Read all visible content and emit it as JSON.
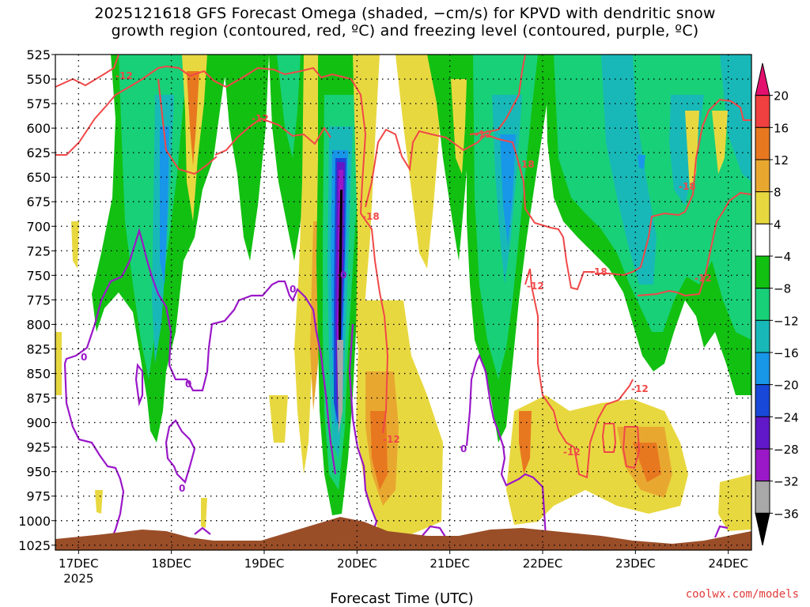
{
  "title": {
    "line1": "2025121618 GFS Forecast Omega (shaded, −cm/s) for KPVD with dendritic snow",
    "line2": "growth region (contoured, red, ºC) and freezing level (contoured, purple, ºC)"
  },
  "credit": "coolwx.com/models",
  "colors": {
    "dendritic_contour": "#f04848",
    "freezing_contour": "#9a18c8",
    "terrain": "#9a4e28",
    "grid": "#000000"
  },
  "chart_data": {
    "type": "heatmap",
    "title": "2025121618 GFS Forecast Omega (shaded, −cm/s) for KPVD with dendritic snow growth region (contoured, red, ºC) and freezing level (contoured, purple, ºC)",
    "xlabel": "Forecast Time (UTC)",
    "ylabel": "",
    "x_ticks": [
      "17DEC",
      "18DEC",
      "19DEC",
      "20DEC",
      "21DEC",
      "22DEC",
      "23DEC",
      "24DEC"
    ],
    "x_year_label": "2025",
    "x_range": [
      "2025-12-16 18UTC",
      "2025-12-24 06UTC"
    ],
    "y_ticks": [
      525,
      550,
      575,
      600,
      625,
      650,
      675,
      700,
      725,
      750,
      775,
      800,
      825,
      850,
      875,
      900,
      925,
      950,
      975,
      1000,
      1025
    ],
    "y_range": [
      1030,
      525
    ],
    "y_units": "hPa",
    "colorbar": {
      "labels": [
        "20",
        "16",
        "12",
        "8",
        "4",
        "−4",
        "−8",
        "−12",
        "−16",
        "−20",
        "−24",
        "−28",
        "−32",
        "−36"
      ],
      "colors": [
        "#e4106e",
        "#f04040",
        "#e87820",
        "#e8a830",
        "#e8d840",
        "#ffffff",
        "#12c012",
        "#18d078",
        "#18b8b8",
        "#1896e8",
        "#1848d8",
        "#6018c8",
        "#9a18c8",
        "#a8a8a8",
        "#000000"
      ]
    },
    "contour_labels": {
      "dendritic": [
        "-12",
        "-12",
        "-12",
        "-18",
        "-18",
        "-12",
        "-18",
        "-12",
        "-12",
        "-18",
        "-12",
        "-12"
      ],
      "freezing": [
        "0",
        "0",
        "0",
        "0",
        "0",
        "0"
      ]
    },
    "grid": true
  }
}
